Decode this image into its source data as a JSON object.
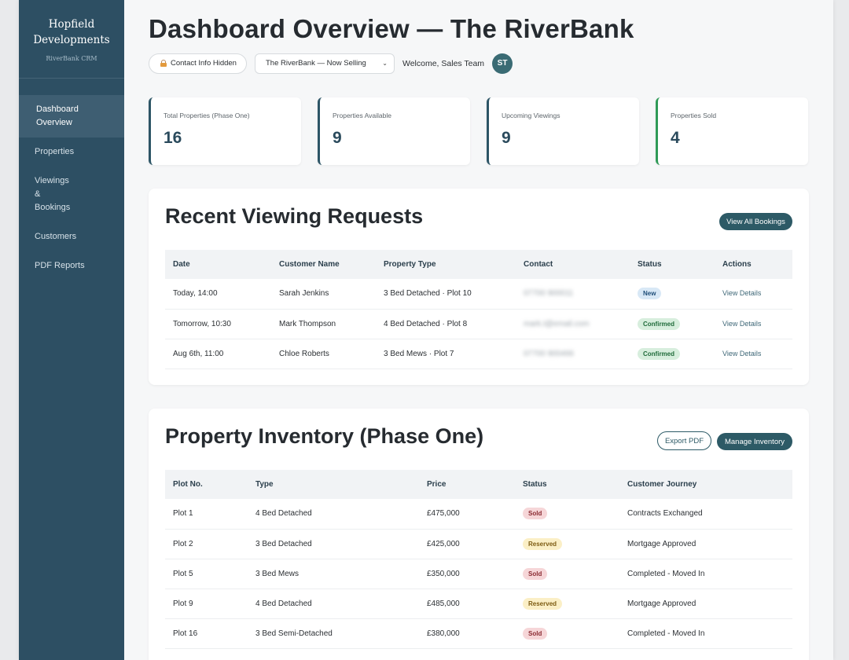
{
  "sidebar": {
    "brand_line1": "Hopfield",
    "brand_line2": "Developments",
    "brand_sub": "RiverBank CRM",
    "items": [
      {
        "label": "Dashboard Overview"
      },
      {
        "label": "Properties"
      },
      {
        "label": "Viewings & Bookings"
      },
      {
        "label": "Customers"
      },
      {
        "label": "PDF Reports"
      }
    ]
  },
  "header": {
    "title": "Dashboard Overview — The RiverBank",
    "contact_toggle": "Contact Info Hidden",
    "development_select": "The RiverBank — Now Selling",
    "welcome": "Welcome, Sales Team",
    "avatar_initials": "ST"
  },
  "stats": [
    {
      "label": "Total Properties (Phase One)",
      "value": "16"
    },
    {
      "label": "Properties Available",
      "value": "9"
    },
    {
      "label": "Upcoming Viewings",
      "value": "9"
    },
    {
      "label": "Properties Sold",
      "value": "4"
    }
  ],
  "viewings": {
    "title": "Recent Viewing Requests",
    "button": "View All Bookings",
    "columns": [
      "Date",
      "Customer Name",
      "Property Type",
      "Contact",
      "Status",
      "Actions"
    ],
    "rows": [
      {
        "date": "Today, 14:00",
        "customer": "Sarah Jenkins",
        "property": "3 Bed Detached · Plot 10",
        "contact": "07700 900011",
        "status": "New",
        "action": "View Details"
      },
      {
        "date": "Tomorrow, 10:30",
        "customer": "Mark Thompson",
        "property": "4 Bed Detached · Plot 8",
        "contact": "mark.t@email.com",
        "status": "Confirmed",
        "action": "View Details"
      },
      {
        "date": "Aug 6th, 11:00",
        "customer": "Chloe Roberts",
        "property": "3 Bed Mews · Plot 7",
        "contact": "07700 900466",
        "status": "Confirmed",
        "action": "View Details"
      }
    ]
  },
  "inventory": {
    "title": "Property Inventory (Phase One)",
    "export_button": "Export PDF",
    "manage_button": "Manage Inventory",
    "columns": [
      "Plot No.",
      "Type",
      "Price",
      "Status",
      "Customer Journey"
    ],
    "rows": [
      {
        "plot": "Plot 1",
        "type": "4 Bed Detached",
        "price": "£475,000",
        "status": "Sold",
        "journey": "Contracts Exchanged"
      },
      {
        "plot": "Plot 2",
        "type": "3 Bed Detached",
        "price": "£425,000",
        "status": "Reserved",
        "journey": "Mortgage Approved"
      },
      {
        "plot": "Plot 5",
        "type": "3 Bed Mews",
        "price": "£350,000",
        "status": "Sold",
        "journey": "Completed - Moved In"
      },
      {
        "plot": "Plot 9",
        "type": "4 Bed Detached",
        "price": "£485,000",
        "status": "Reserved",
        "journey": "Mortgage Approved"
      },
      {
        "plot": "Plot 16",
        "type": "3 Bed Semi-Detached",
        "price": "£380,000",
        "status": "Sold",
        "journey": "Completed - Moved In"
      }
    ]
  }
}
